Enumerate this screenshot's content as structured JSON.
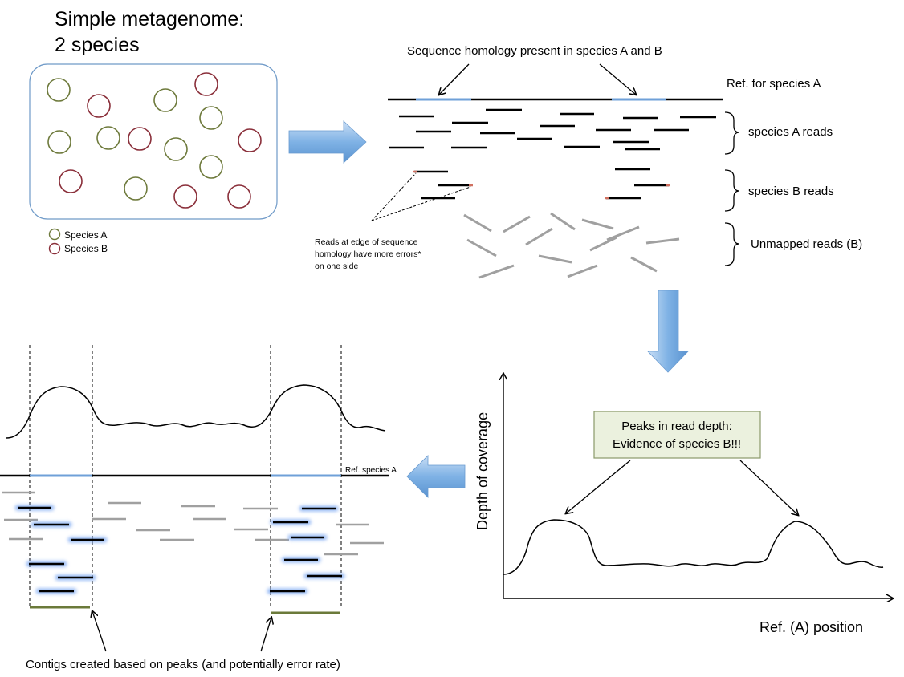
{
  "title": {
    "line1": "Simple metagenome:",
    "line2": "2 species"
  },
  "legend": {
    "species_a": "Species A",
    "species_b": "Species B",
    "color_a": "#6e7a3c",
    "color_b": "#8a2f3a"
  },
  "panel_mapping": {
    "homology_label": "Sequence homology present in species A and B",
    "ref_label": "Ref. for species A",
    "species_a_reads": "species A reads",
    "species_b_reads": "species B reads",
    "unmapped_reads": "Unmapped reads (B)",
    "edge_note": {
      "line1": "Reads at edge of sequence",
      "line2": "homology have more errors*",
      "line3": "on one side"
    }
  },
  "panel_coverage": {
    "y_label": "Depth of coverage",
    "x_label": "Ref. (A) position",
    "callout": {
      "line1": "Peaks in read depth:",
      "line2": "Evidence of species B!!!"
    }
  },
  "panel_contigs": {
    "ref_label": "Ref. species A",
    "caption": "Contigs created based on peaks (and potentially error rate)"
  },
  "colors": {
    "arrow_fill": "#7fb2e5",
    "homology_blue": "#6fa0d8",
    "callout_bg": "#ebf1de",
    "callout_border": "#8a9a6a",
    "unmapped_gray": "#a0a0a0",
    "contig_green": "#6b7a3a"
  }
}
